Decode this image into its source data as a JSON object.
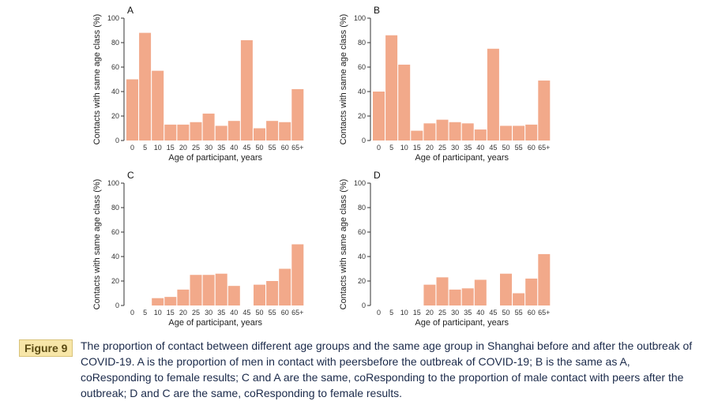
{
  "figure": {
    "label": "Figure 9",
    "caption": "The proportion of contact between different age groups and the same age group in Shanghai before and after the outbreak of COVID-19. A is the proportion of men in contact with peersbefore the outbreak of COVID-19; B is the same as A, coResponding to female results; C and A are the same, coResponding to the proportion of male contact with peers after the outbreak; D and C are the same, coResponding to female results."
  },
  "colors": {
    "bar": "#f2a98a",
    "axis": "#333333"
  },
  "chart_data": [
    {
      "type": "bar",
      "panel": "A",
      "xlabel": "Age of participant, years",
      "ylabel": "Contacts with same age class (%)",
      "ylim": [
        0,
        100
      ],
      "yticks": [
        0,
        20,
        40,
        60,
        80,
        100
      ],
      "categories": [
        "0",
        "5",
        "10",
        "15",
        "20",
        "25",
        "30",
        "35",
        "40",
        "45",
        "50",
        "55",
        "60",
        "65+"
      ],
      "values": [
        50,
        88,
        57,
        13,
        13,
        15,
        22,
        12,
        16,
        82,
        10,
        16,
        15,
        42
      ]
    },
    {
      "type": "bar",
      "panel": "B",
      "xlabel": "Age of participant, years",
      "ylabel": "Contacts with same age class (%)",
      "ylim": [
        0,
        100
      ],
      "yticks": [
        0,
        20,
        40,
        60,
        80,
        100
      ],
      "categories": [
        "0",
        "5",
        "10",
        "15",
        "20",
        "25",
        "30",
        "35",
        "40",
        "45",
        "50",
        "55",
        "60",
        "65+"
      ],
      "values": [
        40,
        86,
        62,
        8,
        14,
        17,
        15,
        14,
        9,
        75,
        12,
        12,
        13,
        49
      ]
    },
    {
      "type": "bar",
      "panel": "C",
      "xlabel": "Age of participant, years",
      "ylabel": "Contacts with same age class (%)",
      "ylim": [
        0,
        100
      ],
      "yticks": [
        0,
        20,
        40,
        60,
        80,
        100
      ],
      "categories": [
        "0",
        "5",
        "10",
        "15",
        "20",
        "25",
        "30",
        "35",
        "40",
        "45",
        "50",
        "55",
        "60",
        "65+"
      ],
      "values": [
        0,
        0,
        6,
        7,
        13,
        25,
        25,
        26,
        16,
        0,
        17,
        20,
        30,
        50
      ]
    },
    {
      "type": "bar",
      "panel": "D",
      "xlabel": "Age of participant, years",
      "ylabel": "Contacts with same age class (%)",
      "ylim": [
        0,
        100
      ],
      "yticks": [
        0,
        20,
        40,
        60,
        80,
        100
      ],
      "categories": [
        "0",
        "5",
        "10",
        "15",
        "20",
        "25",
        "30",
        "35",
        "40",
        "45",
        "50",
        "55",
        "60",
        "65+"
      ],
      "values": [
        0,
        0,
        0,
        0,
        17,
        23,
        13,
        14,
        21,
        0,
        26,
        10,
        22,
        42
      ]
    }
  ]
}
